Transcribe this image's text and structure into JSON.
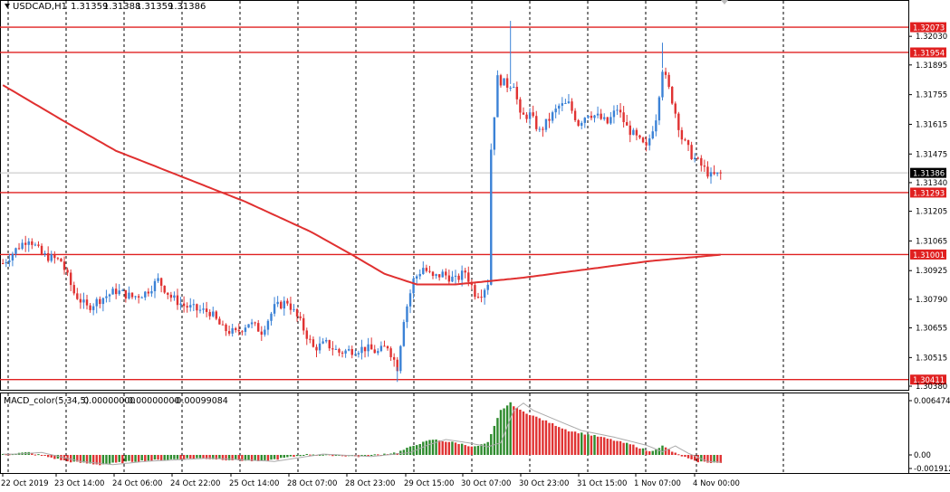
{
  "window": {
    "symbol_label": "USDCAD,H1",
    "ohlc": [
      "1.31359",
      "1.31388",
      "1.31359",
      "1.31386"
    ]
  },
  "macd": {
    "label": "MACD_color(5,34,5)",
    "values": [
      "0.00000000",
      "0.00000000",
      "-0.00099084"
    ],
    "axis_labels": [
      "0.0064747",
      "0.00",
      "-0.001912"
    ]
  },
  "colors": {
    "bull": "#3b82d6",
    "bear": "#e03232",
    "level_line": "#e02020",
    "ma_line": "#e03030",
    "macd_up": "#2e8b2e",
    "macd_down": "#e03232",
    "signal": "#aaaaaa",
    "grid": "#000000",
    "bid_tag": "#000000"
  },
  "chart_data": {
    "type": "candlestick",
    "y_range": [
      1.3038,
      1.3218
    ],
    "price_axis_ticks": [
      "1.32030",
      "1.31895",
      "1.31755",
      "1.31615",
      "1.31475",
      "1.31340",
      "1.31205",
      "1.31065",
      "1.30925",
      "1.30790",
      "1.30655",
      "1.30515",
      "1.30380"
    ],
    "level_lines": [
      {
        "value": 1.32073,
        "label": "1.32073"
      },
      {
        "value": 1.31954,
        "label": "1.31954"
      },
      {
        "value": 1.31293,
        "label": "1.31293"
      },
      {
        "value": 1.31001,
        "label": "1.31001"
      },
      {
        "value": 1.30411,
        "label": "1.30411"
      }
    ],
    "bid": {
      "value": 1.31386,
      "label": "1.31386"
    },
    "time_labels": [
      "22 Oct 2019",
      "23 Oct 14:00",
      "24 Oct 06:00",
      "24 Oct 22:00",
      "25 Oct 14:00",
      "28 Oct 07:00",
      "28 Oct 23:00",
      "29 Oct 15:00",
      "30 Oct 07:00",
      "30 Oct 23:00",
      "31 Oct 15:00",
      "1 Nov 07:00",
      "4 Nov 00:00"
    ],
    "moving_average_keypoints": [
      [
        0,
        1.318
      ],
      [
        20,
        1.3162
      ],
      [
        35,
        1.3149
      ],
      [
        55,
        1.3137
      ],
      [
        75,
        1.3125
      ],
      [
        95,
        1.3111
      ],
      [
        108,
        1.31
      ],
      [
        118,
        1.3091
      ],
      [
        128,
        1.3086
      ],
      [
        140,
        1.3086
      ],
      [
        160,
        1.3089
      ],
      [
        180,
        1.3093
      ],
      [
        200,
        1.3097
      ],
      [
        222,
        1.31
      ]
    ],
    "candle_keypoints": [
      [
        0,
        1.3096
      ],
      [
        5,
        1.3104
      ],
      [
        8,
        1.3108
      ],
      [
        12,
        1.31
      ],
      [
        18,
        1.3097
      ],
      [
        22,
        1.3082
      ],
      [
        26,
        1.3075
      ],
      [
        30,
        1.3079
      ],
      [
        35,
        1.3083
      ],
      [
        40,
        1.308
      ],
      [
        44,
        1.3082
      ],
      [
        48,
        1.3088
      ],
      [
        52,
        1.308
      ],
      [
        56,
        1.3076
      ],
      [
        60,
        1.3074
      ],
      [
        64,
        1.3073
      ],
      [
        68,
        1.3065
      ],
      [
        72,
        1.3063
      ],
      [
        76,
        1.3068
      ],
      [
        80,
        1.3064
      ],
      [
        84,
        1.3075
      ],
      [
        88,
        1.3078
      ],
      [
        92,
        1.3068
      ],
      [
        96,
        1.3056
      ],
      [
        100,
        1.3058
      ],
      [
        104,
        1.3054
      ],
      [
        108,
        1.3055
      ],
      [
        112,
        1.3056
      ],
      [
        116,
        1.3054
      ],
      [
        119,
        1.3057
      ],
      [
        122,
        1.3047
      ],
      [
        124,
        1.307
      ],
      [
        127,
        1.3088
      ],
      [
        130,
        1.3094
      ],
      [
        133,
        1.3089
      ],
      [
        136,
        1.3091
      ],
      [
        140,
        1.3088
      ],
      [
        143,
        1.3092
      ],
      [
        146,
        1.3082
      ],
      [
        148,
        1.3082
      ],
      [
        150,
        1.3087
      ],
      [
        151,
        1.315
      ],
      [
        153,
        1.3183
      ],
      [
        156,
        1.318
      ],
      [
        158,
        1.3181
      ],
      [
        160,
        1.3165
      ],
      [
        163,
        1.3166
      ],
      [
        166,
        1.3158
      ],
      [
        169,
        1.3164
      ],
      [
        172,
        1.317
      ],
      [
        175,
        1.3171
      ],
      [
        178,
        1.3162
      ],
      [
        181,
        1.3167
      ],
      [
        184,
        1.3165
      ],
      [
        187,
        1.3162
      ],
      [
        190,
        1.3169
      ],
      [
        193,
        1.316
      ],
      [
        196,
        1.3155
      ],
      [
        199,
        1.315
      ],
      [
        202,
        1.3165
      ],
      [
        204,
        1.3188
      ],
      [
        207,
        1.3173
      ],
      [
        210,
        1.3155
      ],
      [
        213,
        1.3147
      ],
      [
        216,
        1.3142
      ],
      [
        219,
        1.3137
      ],
      [
        222,
        1.3138
      ]
    ],
    "macd_keypoints": [
      [
        0,
        0.0001
      ],
      [
        8,
        0.0003
      ],
      [
        20,
        -0.0008
      ],
      [
        30,
        -0.0012
      ],
      [
        40,
        -0.0008
      ],
      [
        60,
        -0.0004
      ],
      [
        80,
        -0.0008
      ],
      [
        95,
        0.0001
      ],
      [
        110,
        -0.0002
      ],
      [
        122,
        0.0003
      ],
      [
        128,
        0.0013
      ],
      [
        133,
        0.0019
      ],
      [
        140,
        0.0015
      ],
      [
        146,
        0.001
      ],
      [
        150,
        0.0015
      ],
      [
        154,
        0.0055
      ],
      [
        157,
        0.0064
      ],
      [
        160,
        0.0055
      ],
      [
        166,
        0.0045
      ],
      [
        175,
        0.003
      ],
      [
        185,
        0.0022
      ],
      [
        195,
        0.0012
      ],
      [
        200,
        0.0004
      ],
      [
        204,
        0.0011
      ],
      [
        208,
        0.0002
      ],
      [
        214,
        -0.0008
      ],
      [
        222,
        -0.001
      ]
    ]
  }
}
